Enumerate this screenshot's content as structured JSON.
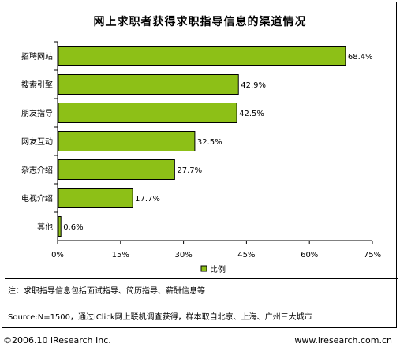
{
  "chart_data": {
    "type": "bar",
    "orientation": "horizontal",
    "title": "网上求职者获得求职指导信息的渠道情况",
    "categories": [
      "招聘网站",
      "搜索引擎",
      "朋友指导",
      "网友互动",
      "杂志介绍",
      "电视介绍",
      "其他"
    ],
    "series": [
      {
        "name": "比例",
        "values": [
          68.4,
          42.9,
          42.5,
          32.5,
          27.7,
          17.7,
          0.6
        ],
        "labels": [
          "68.4%",
          "42.9%",
          "42.5%",
          "32.5%",
          "27.7%",
          "17.7%",
          "0.6%"
        ]
      }
    ],
    "xlim": [
      0,
      75
    ],
    "xticks": [
      0,
      15,
      30,
      45,
      60,
      75
    ],
    "xtick_labels": [
      "0%",
      "15%",
      "30%",
      "45%",
      "60%",
      "75%"
    ],
    "grid": false,
    "legend": "bottom-center",
    "bar_color": "#8dc017"
  },
  "note": "注：求职指导信息包括面试指导、简历指导、薪酬信息等",
  "source": "Source:N=1500，通过iClick网上联机调查获得，样本取自北京、上海、广州三大城市",
  "footer": {
    "copyright": "©2006.10 iResearch Inc.",
    "website": "www.iresearch.com.cn"
  }
}
